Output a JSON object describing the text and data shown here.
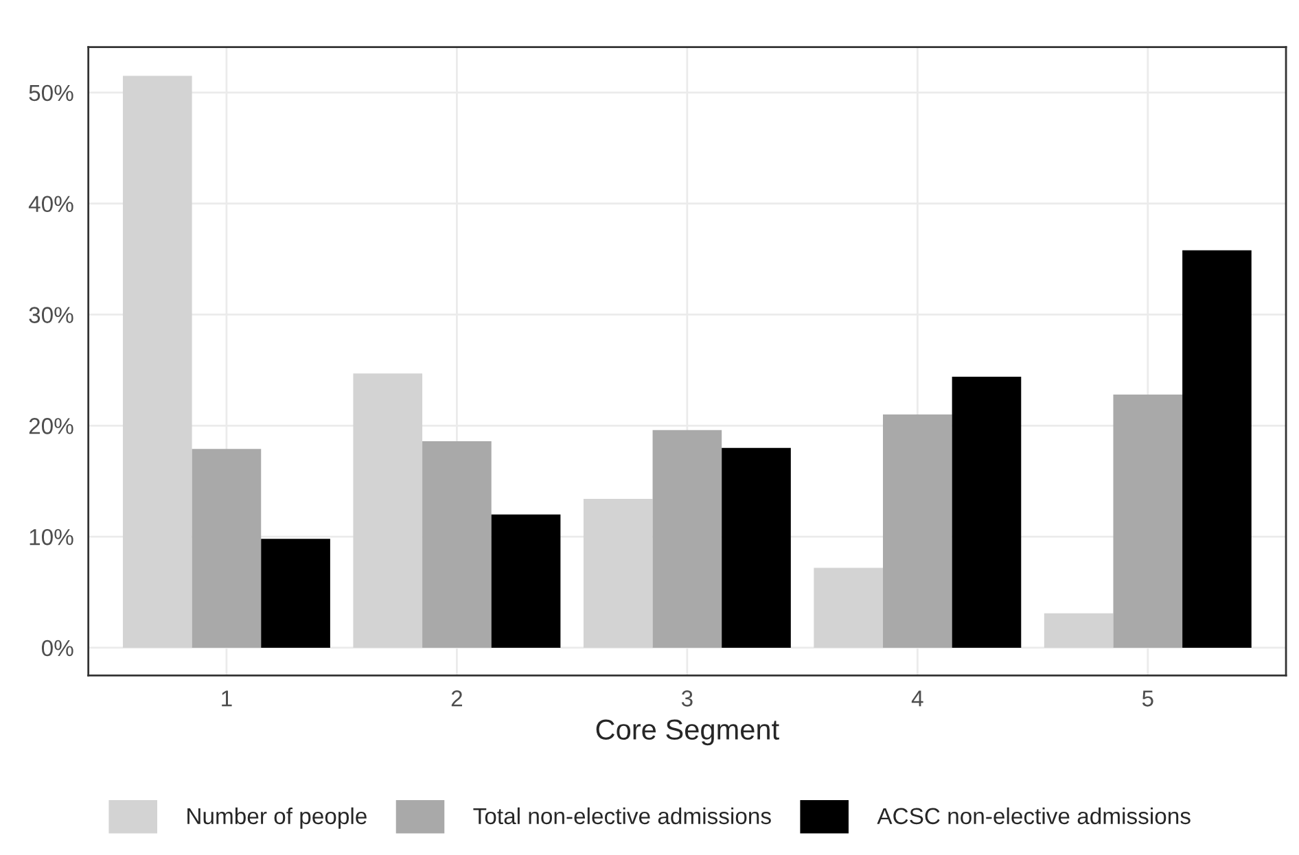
{
  "chart_data": {
    "type": "bar",
    "xlabel": "Core Segment",
    "categories": [
      "1",
      "2",
      "3",
      "4",
      "5"
    ],
    "series": [
      {
        "name": "Number of people",
        "color": "#d3d3d3",
        "values": [
          51.5,
          24.7,
          13.4,
          7.2,
          3.1
        ]
      },
      {
        "name": "Total non-elective admissions",
        "color": "#a9a9a9",
        "values": [
          17.9,
          18.6,
          19.6,
          21.0,
          22.8
        ]
      },
      {
        "name": "ACSC non-elective admissions",
        "color": "#000000",
        "values": [
          9.8,
          12.0,
          18.0,
          24.4,
          35.8
        ]
      }
    ],
    "ylim": [
      -2.5,
      54.1
    ],
    "yticks": [
      {
        "value": 0,
        "label": "0%"
      },
      {
        "value": 10,
        "label": "10%"
      },
      {
        "value": 20,
        "label": "20%"
      },
      {
        "value": 30,
        "label": "30%"
      },
      {
        "value": 40,
        "label": "40%"
      },
      {
        "value": 50,
        "label": "50%"
      }
    ],
    "grid": true,
    "legend": "bottom"
  }
}
